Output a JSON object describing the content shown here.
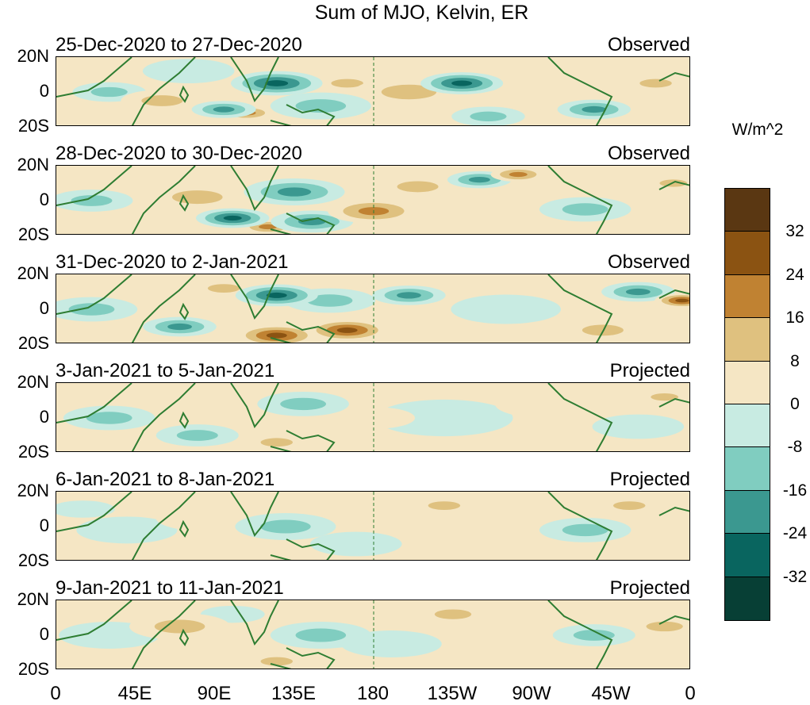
{
  "chart_data": {
    "type": "heatmap",
    "title": "Sum of MJO, Kelvin, ER",
    "x_tick_labels": [
      "0",
      "45E",
      "90E",
      "135E",
      "180",
      "135W",
      "90W",
      "45W",
      "0"
    ],
    "x_range_deg_east": [
      0,
      360
    ],
    "y_tick_labels": [
      "20N",
      "0",
      "20S"
    ],
    "y_range_deg": [
      -20,
      20
    ],
    "colorbar": {
      "units": "W/m^2",
      "tick_labels": [
        "32",
        "24",
        "16",
        "8",
        "0",
        "-8",
        "-16",
        "-24",
        "-32"
      ],
      "levels": [
        32,
        24,
        16,
        8,
        0,
        -8,
        -16,
        -24,
        -32
      ],
      "colors_top_to_bottom": [
        "#5a3712",
        "#8b5312",
        "#c08232",
        "#dfc17f",
        "#f5e6c4",
        "#c8ebe2",
        "#80cdc0",
        "#3b9890",
        "#09655f",
        "#073f35"
      ]
    },
    "panels": [
      {
        "date": "25-Dec-2020 to 27-Dec-2020",
        "status": "Observed",
        "blobs": [
          {
            "lon": 30,
            "lat": 0,
            "v": -10,
            "r": 16
          },
          {
            "lon": 60,
            "lat": -5,
            "v": 10,
            "r": 18
          },
          {
            "lon": 95,
            "lat": -10,
            "v": -22,
            "r": 14
          },
          {
            "lon": 125,
            "lat": 5,
            "v": -30,
            "r": 20
          },
          {
            "lon": 150,
            "lat": -8,
            "v": -16,
            "r": 22
          },
          {
            "lon": 165,
            "lat": 5,
            "v": 12,
            "r": 14
          },
          {
            "lon": 200,
            "lat": 0,
            "v": 14,
            "r": 24
          },
          {
            "lon": 230,
            "lat": 5,
            "v": -26,
            "r": 18
          },
          {
            "lon": 250,
            "lat": -8,
            "v": 8,
            "r": 20
          },
          {
            "lon": 305,
            "lat": -10,
            "v": -18,
            "r": 16
          },
          {
            "lon": 340,
            "lat": 5,
            "v": 10,
            "r": 14
          },
          {
            "lon": 75,
            "lat": 12,
            "v": -8,
            "r": 20
          },
          {
            "lon": 108,
            "lat": -12,
            "v": 20,
            "r": 12
          },
          {
            "lon": 245,
            "lat": -14,
            "v": -14,
            "r": 16
          }
        ]
      },
      {
        "date": "28-Dec-2020 to 30-Dec-2020",
        "status": "Observed",
        "blobs": [
          {
            "lon": 20,
            "lat": 0,
            "v": -14,
            "r": 18
          },
          {
            "lon": 80,
            "lat": 2,
            "v": 10,
            "r": 22
          },
          {
            "lon": 100,
            "lat": -10,
            "v": -26,
            "r": 16
          },
          {
            "lon": 135,
            "lat": 5,
            "v": -24,
            "r": 22
          },
          {
            "lon": 145,
            "lat": -12,
            "v": -20,
            "r": 18
          },
          {
            "lon": 180,
            "lat": -6,
            "v": 24,
            "r": 20
          },
          {
            "lon": 205,
            "lat": 8,
            "v": 12,
            "r": 18
          },
          {
            "lon": 240,
            "lat": 12,
            "v": -20,
            "r": 14
          },
          {
            "lon": 262,
            "lat": 15,
            "v": 22,
            "r": 12
          },
          {
            "lon": 300,
            "lat": -5,
            "v": -14,
            "r": 20
          },
          {
            "lon": 330,
            "lat": -12,
            "v": 8,
            "r": 16
          },
          {
            "lon": 350,
            "lat": 10,
            "v": 16,
            "r": 12
          },
          {
            "lon": 120,
            "lat": -15,
            "v": 18,
            "r": 12
          }
        ]
      },
      {
        "date": "31-Dec-2020 to 2-Jan-2021",
        "status": "Observed",
        "blobs": [
          {
            "lon": 20,
            "lat": 0,
            "v": -16,
            "r": 20
          },
          {
            "lon": 70,
            "lat": -10,
            "v": -22,
            "r": 16
          },
          {
            "lon": 125,
            "lat": 8,
            "v": -26,
            "r": 18
          },
          {
            "lon": 125,
            "lat": -15,
            "v": 30,
            "r": 18
          },
          {
            "lon": 165,
            "lat": -12,
            "v": 28,
            "r": 18
          },
          {
            "lon": 155,
            "lat": 5,
            "v": -12,
            "r": 20
          },
          {
            "lon": 200,
            "lat": 8,
            "v": -18,
            "r": 16
          },
          {
            "lon": 215,
            "lat": -8,
            "v": 8,
            "r": 22
          },
          {
            "lon": 255,
            "lat": 0,
            "v": -8,
            "r": 24
          },
          {
            "lon": 330,
            "lat": 10,
            "v": -22,
            "r": 16
          },
          {
            "lon": 355,
            "lat": 5,
            "v": 26,
            "r": 12
          },
          {
            "lon": 310,
            "lat": -12,
            "v": 10,
            "r": 18
          },
          {
            "lon": 95,
            "lat": 12,
            "v": 12,
            "r": 14
          }
        ]
      },
      {
        "date": "3-Jan-2021 to 5-Jan-2021",
        "status": "Projected",
        "blobs": [
          {
            "lon": 30,
            "lat": 0,
            "v": -10,
            "r": 20
          },
          {
            "lon": 75,
            "lat": 10,
            "v": 8,
            "r": 22
          },
          {
            "lon": 80,
            "lat": -10,
            "v": -10,
            "r": 18
          },
          {
            "lon": 125,
            "lat": -14,
            "v": 16,
            "r": 14
          },
          {
            "lon": 140,
            "lat": 8,
            "v": -10,
            "r": 20
          },
          {
            "lon": 180,
            "lat": 0,
            "v": 8,
            "r": 18
          },
          {
            "lon": 220,
            "lat": 0,
            "v": -6,
            "r": 30
          },
          {
            "lon": 280,
            "lat": 8,
            "v": 6,
            "r": 24
          },
          {
            "lon": 330,
            "lat": -5,
            "v": -8,
            "r": 20
          },
          {
            "lon": 345,
            "lat": 12,
            "v": 10,
            "r": 12
          }
        ]
      },
      {
        "date": "6-Jan-2021 to 8-Jan-2021",
        "status": "Projected",
        "blobs": [
          {
            "lon": 40,
            "lat": -2,
            "v": -8,
            "r": 22
          },
          {
            "lon": 85,
            "lat": 5,
            "v": 8,
            "r": 22
          },
          {
            "lon": 130,
            "lat": 0,
            "v": -10,
            "r": 22
          },
          {
            "lon": 170,
            "lat": -10,
            "v": -8,
            "r": 20
          },
          {
            "lon": 220,
            "lat": 12,
            "v": 14,
            "r": 14
          },
          {
            "lon": 250,
            "lat": 0,
            "v": 6,
            "r": 24
          },
          {
            "lon": 300,
            "lat": -2,
            "v": -10,
            "r": 20
          },
          {
            "lon": 325,
            "lat": 12,
            "v": 16,
            "r": 14
          },
          {
            "lon": 270,
            "lat": -12,
            "v": 8,
            "r": 16
          },
          {
            "lon": 15,
            "lat": 10,
            "v": -6,
            "r": 14
          }
        ]
      },
      {
        "date": "9-Jan-2021 to 11-Jan-2021",
        "status": "Projected",
        "blobs": [
          {
            "lon": 30,
            "lat": 0,
            "v": -8,
            "r": 22
          },
          {
            "lon": 70,
            "lat": 5,
            "v": 10,
            "r": 22
          },
          {
            "lon": 125,
            "lat": -15,
            "v": 14,
            "r": 14
          },
          {
            "lon": 150,
            "lat": 0,
            "v": -10,
            "r": 22
          },
          {
            "lon": 190,
            "lat": -5,
            "v": -8,
            "r": 22
          },
          {
            "lon": 225,
            "lat": 12,
            "v": 12,
            "r": 16
          },
          {
            "lon": 270,
            "lat": 0,
            "v": 6,
            "r": 24
          },
          {
            "lon": 305,
            "lat": 0,
            "v": -10,
            "r": 18
          },
          {
            "lon": 345,
            "lat": 5,
            "v": 10,
            "r": 16
          },
          {
            "lon": 100,
            "lat": 12,
            "v": -6,
            "r": 14
          }
        ]
      }
    ]
  }
}
